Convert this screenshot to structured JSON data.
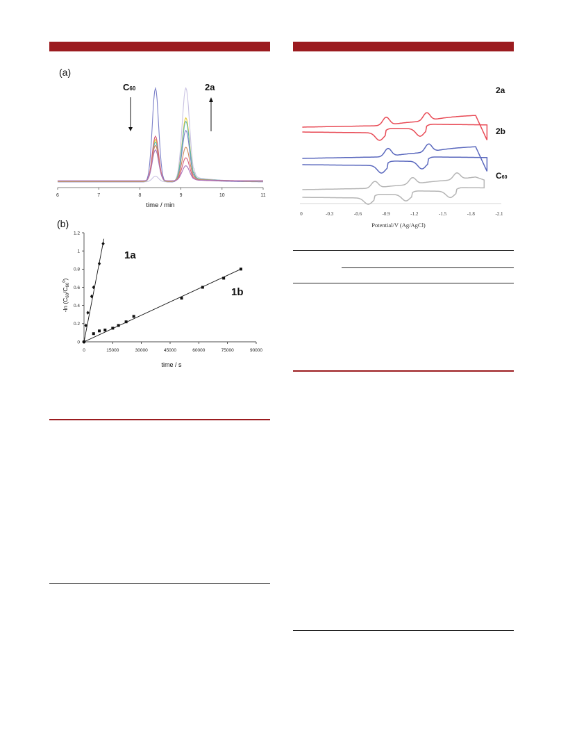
{
  "colors": {
    "header_bar": "#9b1b1f",
    "trace_purple": "#7b7fc8",
    "trace_lavender": "#c9c2e2",
    "trace_yellow": "#e2c932",
    "trace_teal": "#5eb7ad",
    "trace_pink": "#d65b7c",
    "trace_orange": "#d1895a",
    "trace_magenta": "#a973bb",
    "cv_red": "#e84a55",
    "cv_blue": "#5967bd",
    "cv_grey": "#b5b5b5"
  },
  "panel_a": {
    "label": "(a)",
    "c60_label": "C",
    "c60_sub": "60",
    "product_label": "2a",
    "xlabel": "time / min",
    "x_ticks": [
      "6",
      "7",
      "8",
      "9",
      "10",
      "11"
    ]
  },
  "panel_b": {
    "label": "(b)",
    "ylabel_pre": "-ln (C",
    "ylabel_sub1": "60",
    "ylabel_mid": "/C",
    "ylabel_sub2": "60",
    "ylabel_sup": "0",
    "ylabel_post": ")",
    "xlabel": "time / s",
    "x_ticks": [
      "0",
      "15000",
      "30000",
      "45000",
      "60000",
      "75000",
      "90000"
    ],
    "y_ticks": [
      "0",
      "0.2",
      "0.4",
      "0.6",
      "0.8",
      "1",
      "1.2"
    ],
    "series_1a_label": "1a",
    "series_1b_label": "1b"
  },
  "cv": {
    "label_2a": "2a",
    "label_2b": "2b",
    "label_c60": "C",
    "label_c60_sub": "60",
    "xlabel": "Potential/V (Ag/AgCl)",
    "x_ticks": [
      "0",
      "-0.3",
      "-0.6",
      "-0.9",
      "-1.2",
      "-1.5",
      "-1.8",
      "-2.1"
    ]
  },
  "chart_data": [
    {
      "type": "line",
      "id": "hplc",
      "xlabel": "time / min",
      "ylabel": "",
      "xlim": [
        6,
        11
      ],
      "note": "HPLC traces; C60 peak (~8.4 min) decreases, 2a peak (~9.1 min) increases",
      "series": [
        {
          "color": "#7b7fc8",
          "c60_peak": 1.0,
          "p2a_peak": 0.55
        },
        {
          "color": "#c9c2e2",
          "c60_peak": 0.06,
          "p2a_peak": 1.0
        },
        {
          "color": "#e2c932",
          "c60_peak": 0.45,
          "p2a_peak": 0.68
        },
        {
          "color": "#5eb7ad",
          "c60_peak": 0.42,
          "p2a_peak": 0.64
        },
        {
          "color": "#d65b7c",
          "c60_peak": 0.48,
          "p2a_peak": 0.25
        },
        {
          "color": "#d1895a",
          "c60_peak": 0.38,
          "p2a_peak": 0.36
        },
        {
          "color": "#a973bb",
          "c60_peak": 0.33,
          "p2a_peak": 0.16
        }
      ]
    },
    {
      "type": "scatter",
      "id": "kinetics",
      "xlabel": "time / s",
      "ylabel": "-ln (C60/C60^0)",
      "xlim": [
        0,
        90000
      ],
      "ylim": [
        0,
        1.2
      ],
      "series": [
        {
          "name": "1a",
          "marker": "diamond",
          "x": [
            0,
            1000,
            2000,
            4000,
            5000,
            8000,
            10000
          ],
          "y": [
            0,
            0.18,
            0.32,
            0.5,
            0.6,
            0.86,
            1.08
          ],
          "fit_slope": 0.000109
        },
        {
          "name": "1b",
          "marker": "square",
          "x": [
            0,
            5000,
            8000,
            11000,
            15000,
            18000,
            22000,
            26000,
            51000,
            62000,
            73000,
            82000
          ],
          "y": [
            0,
            0.09,
            0.12,
            0.13,
            0.15,
            0.18,
            0.22,
            0.28,
            0.48,
            0.6,
            0.7,
            0.8
          ],
          "fit_slope": 9.76e-06
        }
      ]
    },
    {
      "type": "line",
      "id": "cv",
      "xlabel": "Potential/V (Ag/AgCl)",
      "xlim": [
        0,
        -2.1
      ],
      "series": [
        {
          "name": "2a",
          "color": "#e84a55",
          "reduction_peaks": [
            -0.9,
            -1.33
          ]
        },
        {
          "name": "2b",
          "color": "#5967bd",
          "reduction_peaks": [
            -0.92,
            -1.35
          ]
        },
        {
          "name": "C60",
          "color": "#b5b5b5",
          "reduction_peaks": [
            -0.78,
            -1.18,
            -1.65
          ]
        }
      ]
    }
  ]
}
